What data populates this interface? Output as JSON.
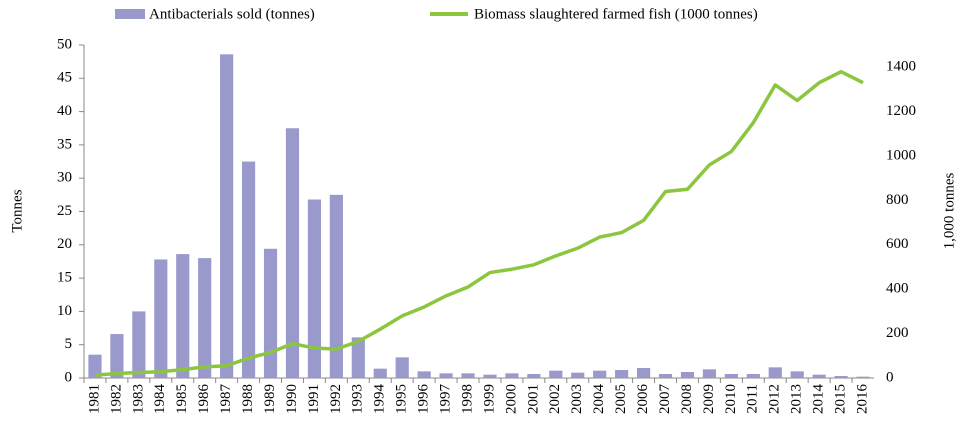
{
  "chart_data": {
    "type": "bar_line",
    "categories": [
      "1981",
      "1982",
      "1983",
      "1984",
      "1985",
      "1986",
      "1987",
      "1988",
      "1989",
      "1990",
      "1991",
      "1992",
      "1993",
      "1994",
      "1995",
      "1996",
      "1997",
      "1998",
      "1999",
      "2000",
      "2001",
      "2002",
      "2003",
      "2004",
      "2005",
      "2006",
      "2007",
      "2008",
      "2009",
      "2010",
      "2011",
      "2012",
      "2013",
      "2014",
      "2015",
      "2016"
    ],
    "series": [
      {
        "name": "Antibacterials sold (tonnes)",
        "type": "bar",
        "color": "#9999cc",
        "values": [
          3.5,
          6.6,
          10,
          17.8,
          18.6,
          18,
          48.6,
          32.5,
          19.4,
          37.5,
          26.8,
          27.5,
          6.1,
          1.4,
          3.1,
          1,
          0.7,
          0.7,
          0.5,
          0.7,
          0.6,
          1.1,
          0.8,
          1.1,
          1.2,
          1.5,
          0.6,
          0.9,
          1.3,
          0.6,
          0.6,
          1.6,
          1,
          0.5,
          0.3,
          0.2
        ]
      },
      {
        "name": "Biomass slaughtered farmed fish (1000 tonnes)",
        "type": "line",
        "axis": "y2",
        "color": "#8cc63f",
        "values": [
          13,
          20,
          25,
          28,
          38,
          50,
          55,
          90,
          115,
          155,
          135,
          130,
          165,
          220,
          280,
          320,
          370,
          410,
          475,
          490,
          510,
          550,
          585,
          635,
          655,
          710,
          840,
          850,
          960,
          1020,
          1150,
          1320,
          1250,
          1330,
          1380,
          1330
        ]
      }
    ],
    "ylabel": "Tonnes",
    "y2label": "1,000 tonnes",
    "ylim": [
      0,
      50
    ],
    "yticks": [
      0,
      5,
      10,
      15,
      20,
      25,
      30,
      35,
      40,
      45,
      50
    ],
    "y2lim": [
      0,
      1500
    ],
    "y2ticks": [
      0,
      200,
      400,
      600,
      800,
      1000,
      1200,
      1400
    ],
    "legend": "top"
  }
}
